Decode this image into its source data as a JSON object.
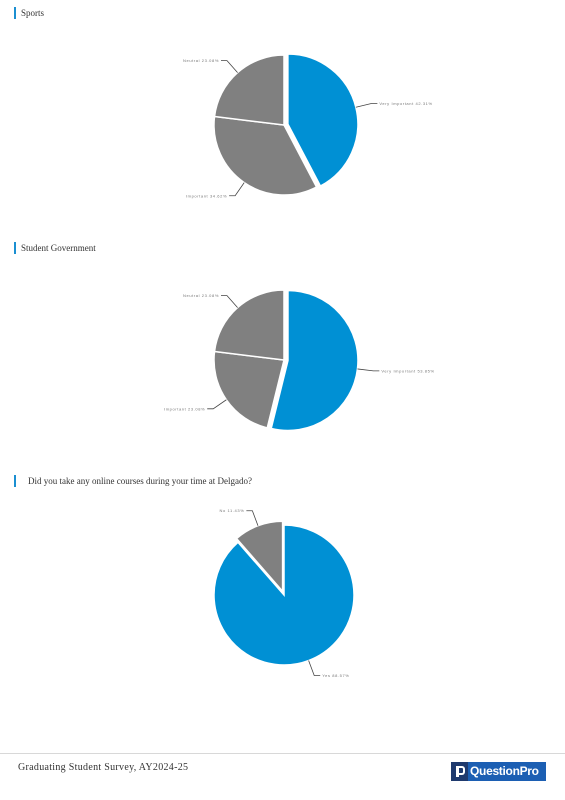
{
  "sections": [
    {
      "title": "Sports"
    },
    {
      "title": "Student Government"
    },
    {
      "title": "Did you take any online courses during your time at Delgado?"
    }
  ],
  "chart_data": [
    {
      "type": "pie",
      "title": "Sports",
      "slices": [
        {
          "label": "Very Important 42.31%",
          "value": 42.31,
          "color": "#0090d4",
          "exploded": true
        },
        {
          "label": "Important 34.62%",
          "value": 34.62,
          "color": "#808080",
          "exploded": false
        },
        {
          "label": "Neutral 23.08%",
          "value": 23.07,
          "color": "#808080",
          "exploded": false
        }
      ]
    },
    {
      "type": "pie",
      "title": "Student Government",
      "slices": [
        {
          "label": "Very Important 53.85%",
          "value": 53.85,
          "color": "#0090d4",
          "exploded": true
        },
        {
          "label": "Important 23.08%",
          "value": 23.08,
          "color": "#808080",
          "exploded": false
        },
        {
          "label": "Neutral 23.08%",
          "value": 23.07,
          "color": "#808080",
          "exploded": false
        }
      ]
    },
    {
      "type": "pie",
      "title": "Did you take any online courses during your time at Delgado?",
      "slices": [
        {
          "label": "Yes 88.57%",
          "value": 88.57,
          "color": "#0090d4",
          "exploded": false
        },
        {
          "label": "No 11.43%",
          "value": 11.43,
          "color": "#808080",
          "exploded": true
        }
      ]
    }
  ],
  "footer": {
    "survey_name": "Graduating Student Survey, AY2024-25",
    "brand_name": "QuestionPro"
  }
}
